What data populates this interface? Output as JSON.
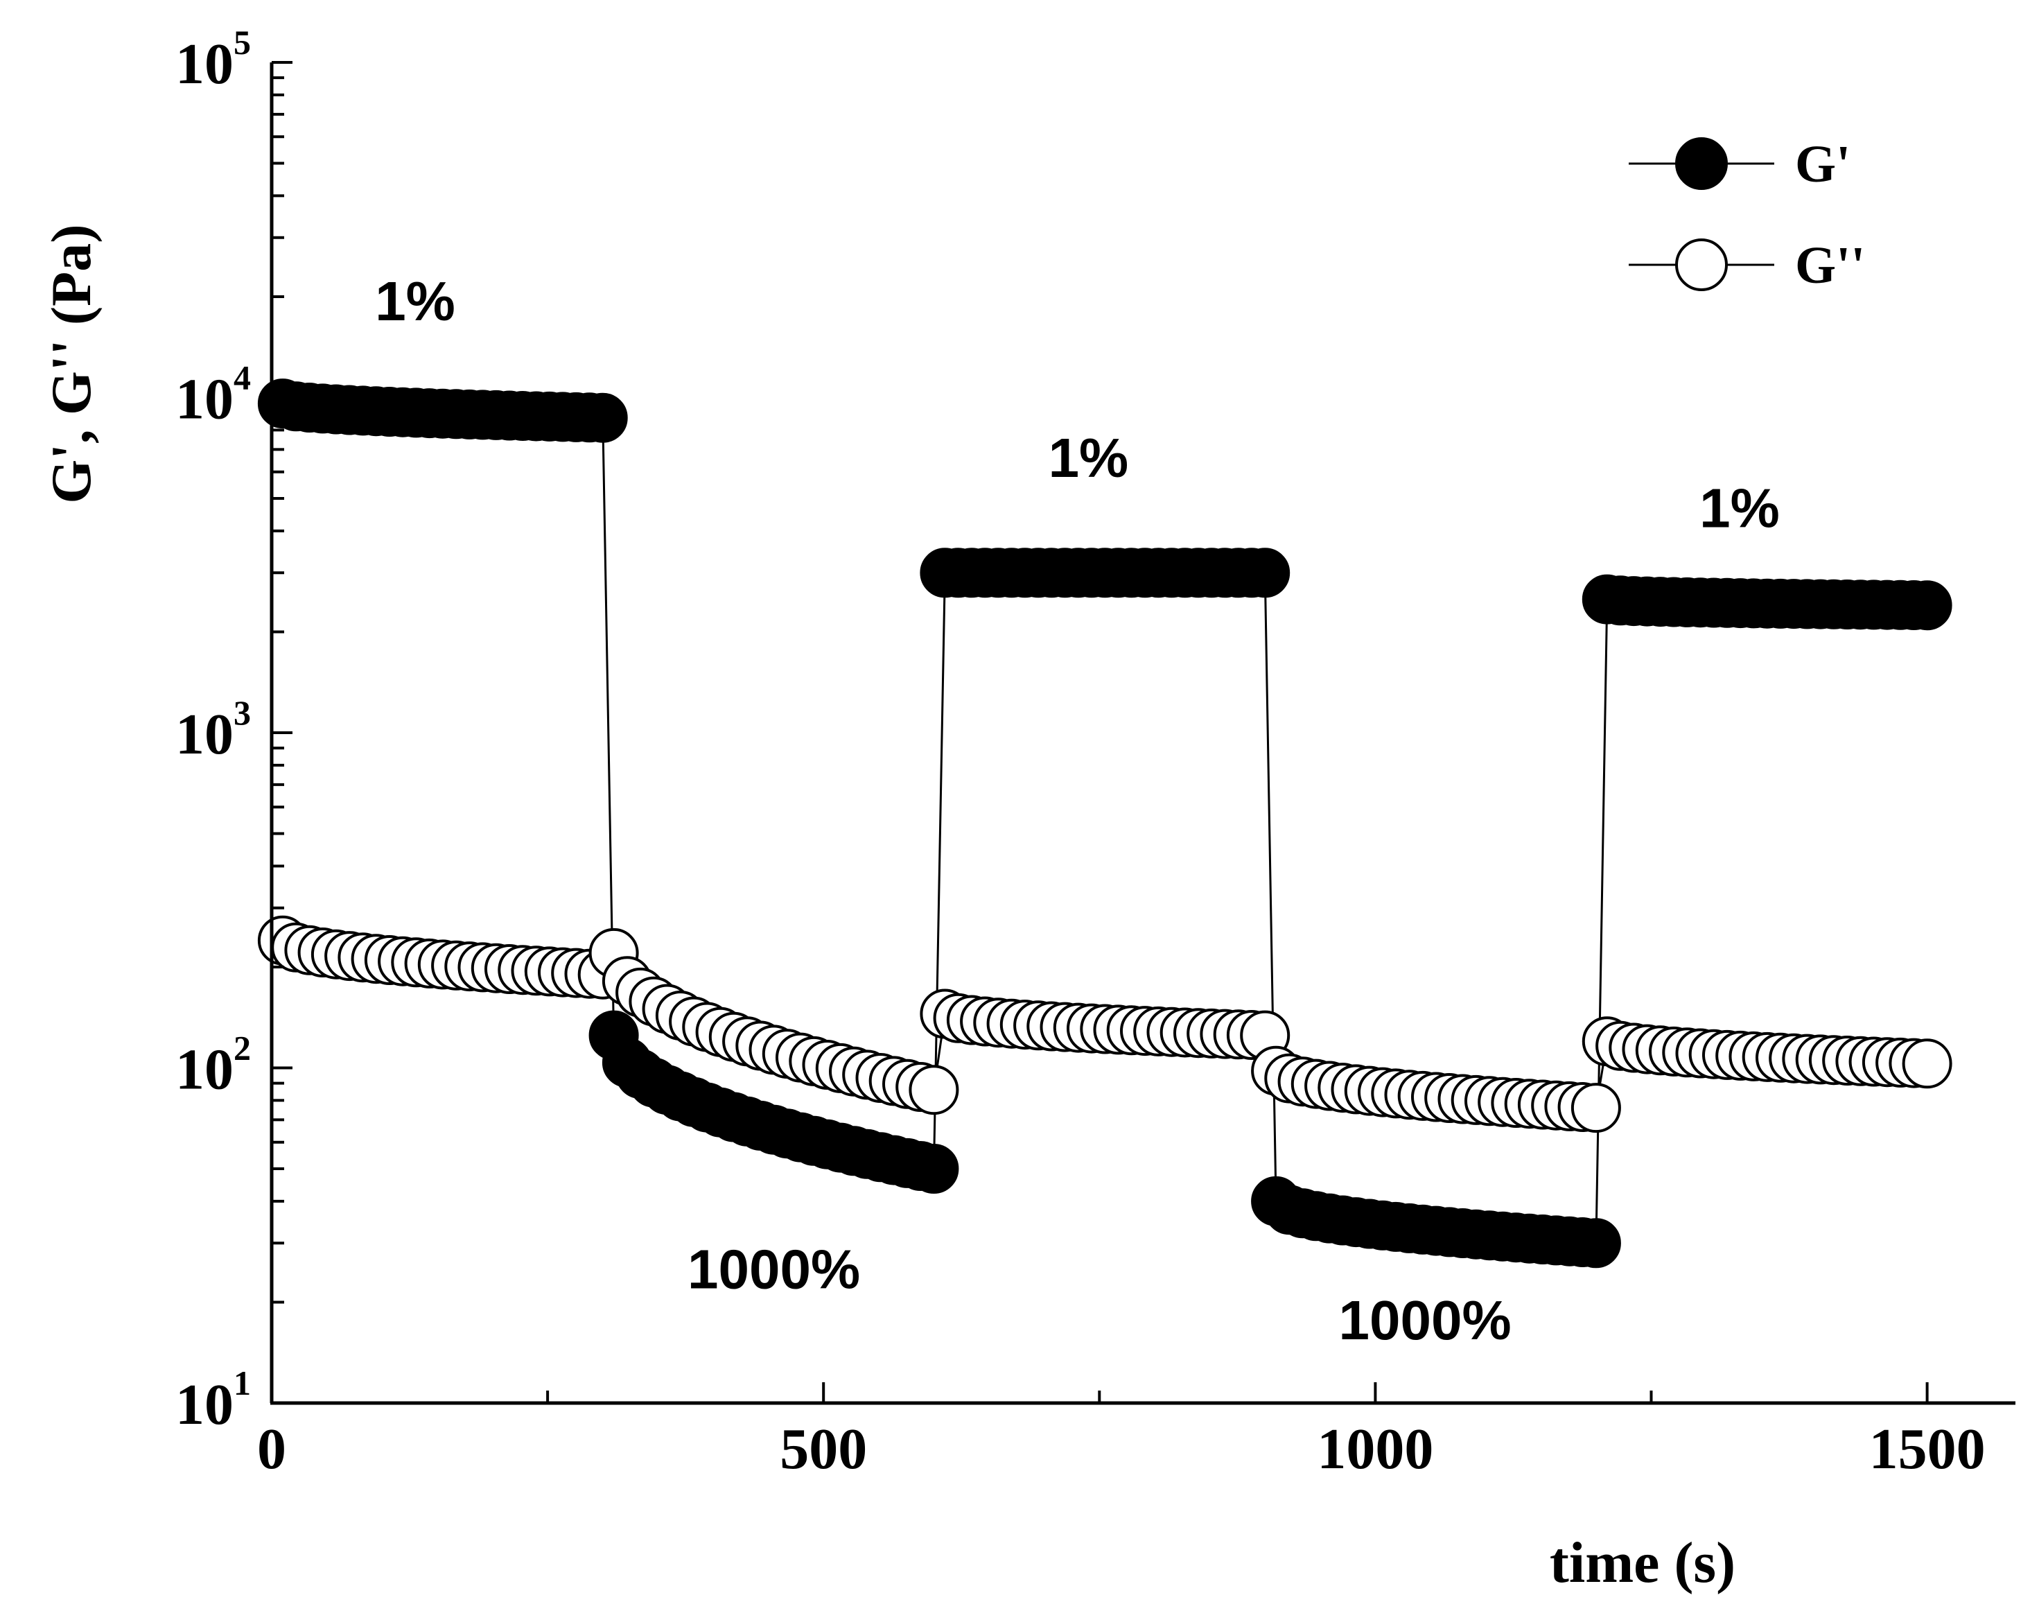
{
  "chart_data": {
    "type": "line",
    "title": "",
    "xlabel": "time (s)",
    "ylabel": "G', G'' (Pa)",
    "xlim": [
      0,
      1580
    ],
    "ylim": [
      10,
      100000
    ],
    "yscale": "log",
    "x_ticks": [
      0,
      500,
      1000,
      1500
    ],
    "x_ticklabels": [
      "0",
      "500",
      "1000",
      "1500"
    ],
    "y_ticks": [
      10,
      100,
      1000,
      10000,
      100000
    ],
    "y_tick_bases": [
      "10",
      "10",
      "10",
      "10",
      "10"
    ],
    "y_tick_exponents": [
      "1",
      "2",
      "3",
      "4",
      "5"
    ],
    "legend": {
      "position": "top-right",
      "entries": [
        "G'",
        "G''"
      ]
    },
    "annotations": [
      {
        "text": "1%",
        "x": 130,
        "y": 17000
      },
      {
        "text": "1000%",
        "x": 455,
        "y": 22
      },
      {
        "text": "1%",
        "x": 740,
        "y": 5800
      },
      {
        "text": "1000%",
        "x": 1045,
        "y": 15.5
      },
      {
        "text": "1%",
        "x": 1330,
        "y": 4100
      }
    ],
    "series": [
      {
        "name": "G'",
        "marker": "filled-circle",
        "segments": [
          {
            "x_start": 10,
            "x_end": 300,
            "count": 25,
            "y_start": 9600,
            "y_end": 8700
          },
          {
            "x_start": 310,
            "x_end": 600,
            "count": 25,
            "y_start": 125,
            "y_end": 50
          },
          {
            "x_start": 610,
            "x_end": 900,
            "count": 25,
            "y_start": 3000,
            "y_end": 3000
          },
          {
            "x_start": 910,
            "x_end": 1200,
            "count": 25,
            "y_start": 40,
            "y_end": 30
          },
          {
            "x_start": 1210,
            "x_end": 1500,
            "count": 25,
            "y_start": 2500,
            "y_end": 2400
          }
        ]
      },
      {
        "name": "G''",
        "marker": "open-circle",
        "segments": [
          {
            "x_start": 10,
            "x_end": 300,
            "count": 25,
            "y_start": 240,
            "y_end": 190
          },
          {
            "x_start": 310,
            "x_end": 600,
            "count": 25,
            "y_start": 220,
            "y_end": 86
          },
          {
            "x_start": 610,
            "x_end": 900,
            "count": 25,
            "y_start": 145,
            "y_end": 125
          },
          {
            "x_start": 910,
            "x_end": 1200,
            "count": 25,
            "y_start": 98,
            "y_end": 76
          },
          {
            "x_start": 1210,
            "x_end": 1500,
            "count": 25,
            "y_start": 120,
            "y_end": 103
          }
        ]
      }
    ]
  }
}
